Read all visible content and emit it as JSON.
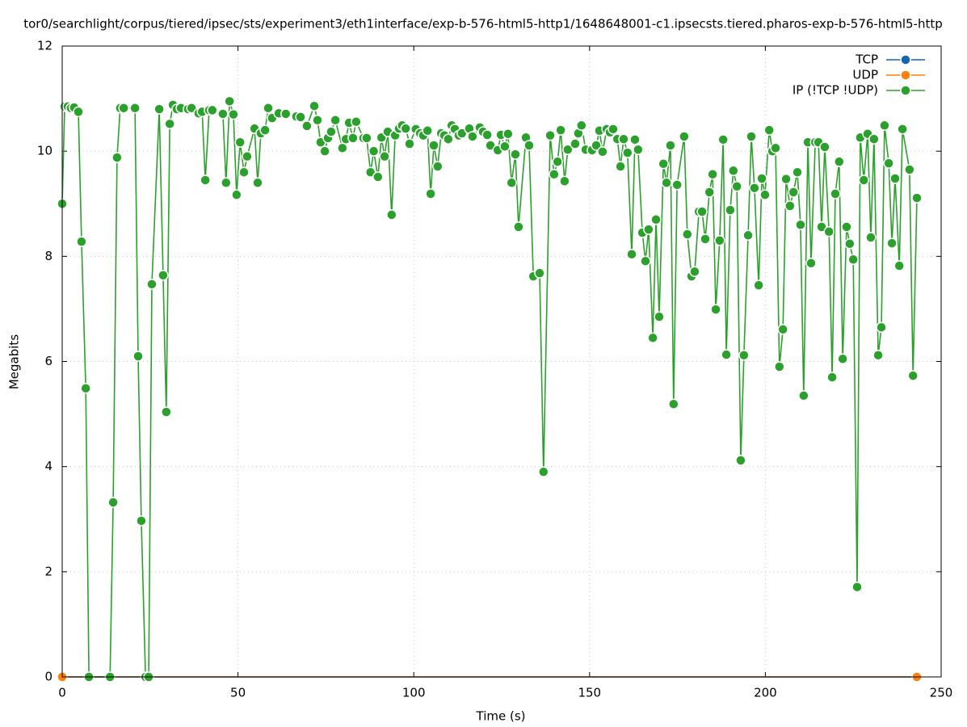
{
  "chart_data": {
    "type": "line",
    "title": "tor0/searchlight/corpus/tiered/ipsec/sts/experiment3/eth1interface/exp-b-576-html5-http1/1648648001-c1.ipsecsts.tiered.pharos-exp-b-576-html5-http",
    "xlabel": "Time (s)",
    "ylabel": "Megabits",
    "xlim": [
      0,
      250
    ],
    "ylim": [
      0,
      12
    ],
    "xticks": [
      0,
      50,
      100,
      150,
      200,
      250
    ],
    "yticks": [
      0,
      2,
      4,
      6,
      8,
      10,
      12
    ],
    "grid": true,
    "legend": "upper right",
    "series": [
      {
        "name": "TCP",
        "color": "#1565b0",
        "x": [
          0,
          243.1
        ],
        "values": [
          0,
          0
        ]
      },
      {
        "name": "UDP",
        "color": "#ff7f0e",
        "x": [
          0,
          243.1
        ],
        "values": [
          0,
          0
        ]
      },
      {
        "name": "IP (!TCP  !UDP)",
        "color": "#2ca02c",
        "x": [
          0,
          0.7,
          1.6,
          2.5,
          3.4,
          4.6,
          5.5,
          6.7,
          7.6,
          13.6,
          14.5,
          15.6,
          16.5,
          17.5,
          20.7,
          21.6,
          22.5,
          23.7,
          24.6,
          25.5,
          27.6,
          28.7,
          29.6,
          30.6,
          31.5,
          32.6,
          33.8,
          35.8,
          36.8,
          38.8,
          39.8,
          40.7,
          41.8,
          42.7,
          45.7,
          46.6,
          47.6,
          48.7,
          49.6,
          50.6,
          51.7,
          52.6,
          54.7,
          55.6,
          56.5,
          57.7,
          58.6,
          59.7,
          61.6,
          63.6,
          66.6,
          67.8,
          69.6,
          71.7,
          72.6,
          73.5,
          74.7,
          75.6,
          76.5,
          77.7,
          79.7,
          80.7,
          81.6,
          82.7,
          83.6,
          85.7,
          86.6,
          87.7,
          88.6,
          89.8,
          90.8,
          91.7,
          92.6,
          93.7,
          94.7,
          95.8,
          96.7,
          97.7,
          98.8,
          100.6,
          101.8,
          102.7,
          103.9,
          104.8,
          105.7,
          106.8,
          107.8,
          108.7,
          109.8,
          110.8,
          111.7,
          112.8,
          113.7,
          115.8,
          116.7,
          118.8,
          119.7,
          120.9,
          121.8,
          123.9,
          124.8,
          125.9,
          126.8,
          127.8,
          128.9,
          129.8,
          131.9,
          132.8,
          134.0,
          135.8,
          136.9,
          138.8,
          139.9,
          140.9,
          141.8,
          142.9,
          143.8,
          145.9,
          146.8,
          147.7,
          148.9,
          150.7,
          151.9,
          152.8,
          153.7,
          154.9,
          155.8,
          156.7,
          157.9,
          158.8,
          159.7,
          160.8,
          162.0,
          162.9,
          163.8,
          165.0,
          165.9,
          166.8,
          168.0,
          168.9,
          169.8,
          171.0,
          171.9,
          173.0,
          173.9,
          174.9,
          176.9,
          177.8,
          179.0,
          179.9,
          181.1,
          182.0,
          182.9,
          184.1,
          185.0,
          185.9,
          187.0,
          188.0,
          188.9,
          190.0,
          190.9,
          191.9,
          193.0,
          193.9,
          195.1,
          196.0,
          196.9,
          198.1,
          199.0,
          199.9,
          201.1,
          202.0,
          202.9,
          204.0,
          205.0,
          205.9,
          207.0,
          208.0,
          209.1,
          210.0,
          210.9,
          212.1,
          213.0,
          214.2,
          215.1,
          216.0,
          216.9,
          218.1,
          219.0,
          219.9,
          221.0,
          222.0,
          223.1,
          224.0,
          225.0,
          226.1,
          227.0,
          228.0,
          229.1,
          230.0,
          230.9,
          232.1,
          233.0,
          233.9,
          235.1,
          236.0,
          236.9,
          238.1,
          239.0,
          241.0,
          242.0,
          243.1
        ],
        "values": [
          9.0,
          10.85,
          10.85,
          10.82,
          10.83,
          10.75,
          8.28,
          5.49,
          0,
          0,
          3.32,
          9.88,
          10.82,
          10.82,
          10.82,
          6.1,
          2.97,
          0,
          0,
          7.47,
          10.8,
          7.64,
          5.04,
          10.52,
          10.88,
          10.8,
          10.82,
          10.8,
          10.82,
          10.72,
          10.75,
          9.45,
          10.78,
          10.78,
          10.71,
          9.4,
          10.95,
          10.7,
          9.17,
          10.17,
          9.6,
          9.9,
          10.43,
          9.4,
          10.34,
          10.4,
          10.82,
          10.63,
          10.72,
          10.71,
          10.66,
          10.65,
          10.48,
          10.86,
          10.59,
          10.17,
          10.0,
          10.25,
          10.37,
          10.59,
          10.06,
          10.23,
          10.54,
          10.25,
          10.56,
          10.25,
          10.25,
          9.6,
          10.0,
          9.51,
          10.26,
          9.9,
          10.37,
          8.79,
          10.3,
          10.43,
          10.49,
          10.43,
          10.14,
          10.42,
          10.34,
          10.3,
          10.39,
          9.19,
          10.11,
          9.71,
          10.34,
          10.3,
          10.23,
          10.49,
          10.42,
          10.3,
          10.34,
          10.43,
          10.28,
          10.45,
          10.37,
          10.31,
          10.11,
          10.02,
          10.31,
          10.09,
          10.33,
          9.4,
          9.94,
          8.56,
          10.26,
          10.11,
          7.62,
          7.68,
          3.9,
          10.3,
          9.56,
          9.8,
          10.4,
          9.43,
          10.03,
          10.14,
          10.34,
          10.49,
          10.03,
          10.02,
          10.11,
          10.39,
          9.99,
          10.42,
          10.36,
          10.42,
          10.23,
          9.71,
          10.23,
          9.97,
          8.04,
          10.22,
          10.03,
          8.45,
          7.91,
          8.51,
          6.45,
          8.7,
          6.85,
          9.76,
          9.4,
          10.11,
          5.19,
          9.36,
          10.28,
          8.42,
          7.62,
          7.71,
          8.85,
          8.85,
          8.33,
          9.22,
          9.56,
          6.99,
          8.3,
          10.22,
          6.13,
          8.88,
          9.63,
          9.33,
          4.12,
          6.12,
          8.4,
          10.28,
          9.3,
          7.45,
          9.48,
          9.17,
          10.4,
          10.0,
          10.06,
          5.9,
          6.61,
          9.47,
          8.96,
          9.22,
          9.6,
          8.6,
          5.35,
          10.17,
          7.87,
          10.17,
          10.17,
          8.56,
          10.08,
          8.47,
          5.7,
          9.19,
          9.8,
          6.05,
          8.56,
          8.24,
          7.94,
          1.71,
          10.26,
          9.45,
          10.33,
          8.36,
          10.23,
          6.12,
          6.65,
          10.49,
          9.77,
          8.25,
          9.48,
          7.82,
          10.42,
          9.65,
          5.73,
          9.11
        ]
      }
    ]
  }
}
